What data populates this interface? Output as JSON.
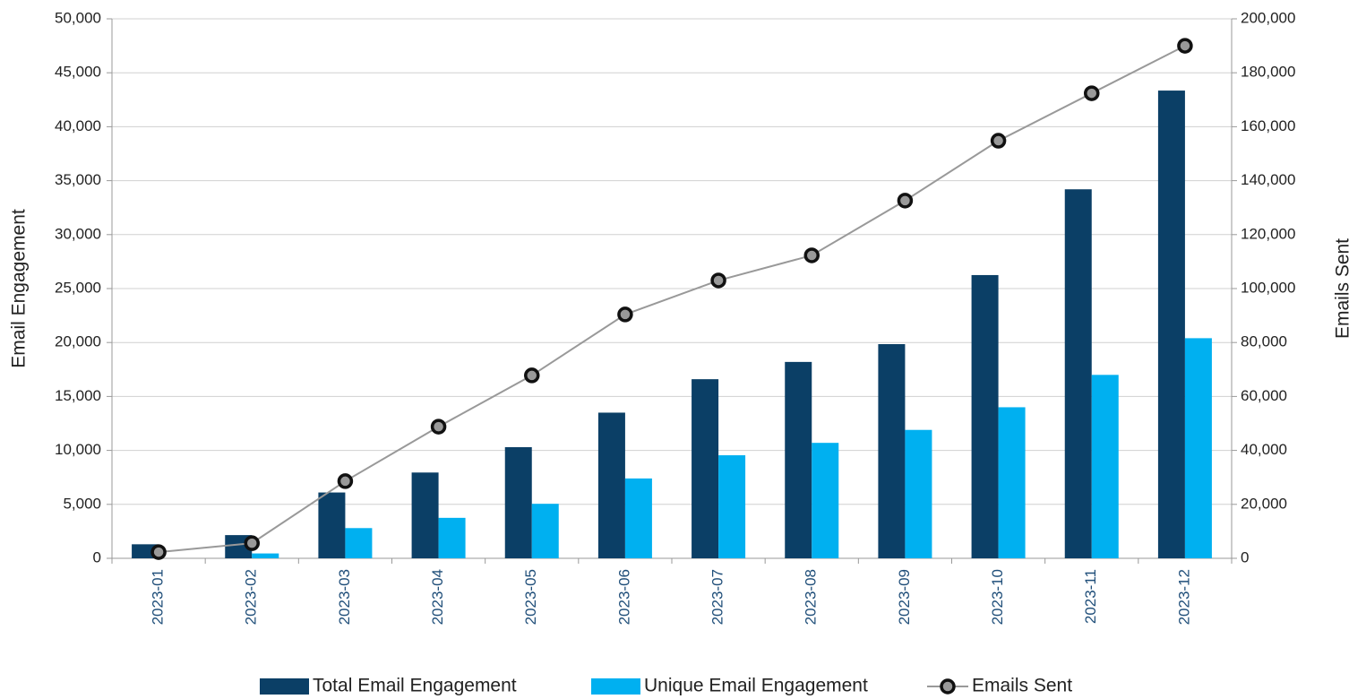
{
  "chart_data": {
    "type": "bar",
    "y_label": "Email Engagement",
    "y2_label": "Emails Sent",
    "categories": [
      "2023-01",
      "2023-02",
      "2023-03",
      "2023-04",
      "2023-05",
      "2023-06",
      "2023-07",
      "2023-08",
      "2023-09",
      "2023-10",
      "2023-11",
      "2023-12"
    ],
    "series": [
      {
        "name": "Total Email Engagement",
        "color": "#0b3f66",
        "type": "bar",
        "values": [
          1300,
          2150,
          6100,
          7950,
          10300,
          13500,
          16600,
          18200,
          19850,
          26250,
          34200,
          43350
        ]
      },
      {
        "name": "Unique Email Engagement",
        "color": "#00b0f0",
        "type": "bar",
        "values": [
          0,
          450,
          2800,
          3750,
          5050,
          7400,
          9550,
          10700,
          11900,
          14000,
          17000,
          20400
        ]
      },
      {
        "name": "Emails Sent",
        "color": "#999999",
        "type": "line",
        "axis": "y2",
        "values": [
          2300,
          5600,
          28600,
          48800,
          67800,
          90400,
          103000,
          112300,
          132600,
          154800,
          172400,
          190000
        ]
      }
    ],
    "ylim": [
      0,
      50000
    ],
    "yticks": [
      0,
      {
        "value": 5000,
        "label": "5,000"
      },
      {
        "value": 10000,
        "label": "10,000"
      },
      {
        "value": 15000,
        "label": "15,000"
      },
      {
        "value": 20000,
        "label": "20,000"
      },
      {
        "value": 25000,
        "label": "25,000"
      },
      {
        "value": 30000,
        "label": "30,000"
      },
      {
        "value": 35000,
        "label": "35,000"
      },
      {
        "value": 40000,
        "label": "40,000"
      },
      {
        "value": 45000,
        "label": "45,000"
      },
      {
        "value": 50000,
        "label": "50,000"
      }
    ],
    "y2lim": [
      0,
      200000
    ],
    "y2ticks": [
      0,
      {
        "value": 20000,
        "label": "20,000"
      },
      {
        "value": 40000,
        "label": "40,000"
      },
      {
        "value": 60000,
        "label": "60,000"
      },
      {
        "value": 80000,
        "label": "80,000"
      },
      {
        "value": 100000,
        "label": "100,000"
      },
      {
        "value": 120000,
        "label": "120,000"
      },
      {
        "value": 140000,
        "label": "140,000"
      },
      {
        "value": 160000,
        "label": "160,000"
      },
      {
        "value": 180000,
        "label": "180,000"
      },
      {
        "value": 200000,
        "label": "200,000"
      }
    ],
    "grid": true,
    "legend": "bottom"
  }
}
